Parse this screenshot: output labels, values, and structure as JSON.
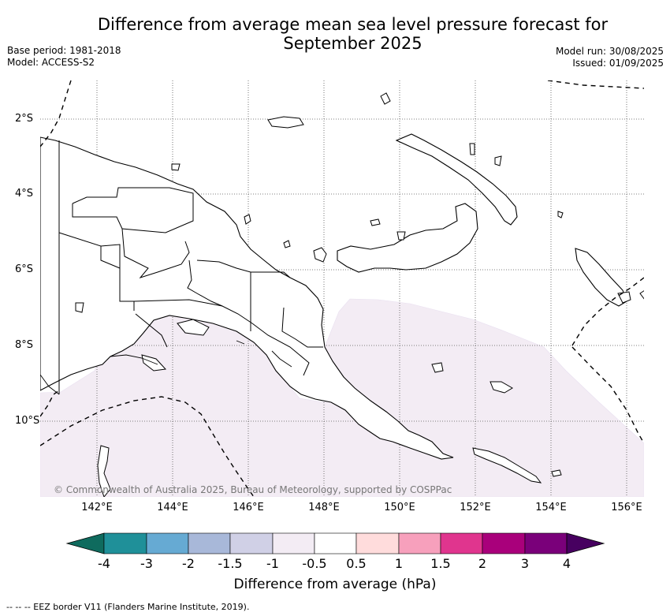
{
  "title_line1": "Difference from average mean sea level pressure forecast for",
  "title_line2": "September 2025",
  "meta_left": {
    "base_period": "Base period: 1981-2018",
    "model": "Model: ACCESS-S2"
  },
  "meta_right": {
    "model_run": "Model run: 30/08/2025",
    "issued": "Issued: 01/09/2025"
  },
  "map": {
    "lon_ticks": [
      "142°E",
      "144°E",
      "146°E",
      "148°E",
      "150°E",
      "152°E",
      "154°E",
      "156°E"
    ],
    "lat_ticks": [
      "2°S",
      "4°S",
      "6°S",
      "8°S",
      "10°S"
    ],
    "copyright": "© Commonwealth of Australia 2025, Bureau of Meteorology, supported by COSPPac",
    "anomaly_fill_color": "#f3ecf4"
  },
  "colorbar": {
    "title": "Difference from average (hPa)",
    "labels": [
      "-4",
      "-3",
      "-2",
      "-1.5",
      "-1",
      "-0.5",
      "0.5",
      "1",
      "1.5",
      "2",
      "3",
      "4"
    ],
    "colors": [
      "#0f6b5e",
      "#1f9099",
      "#66aad3",
      "#a8b8d9",
      "#d0d0e6",
      "#f3ecf4",
      "#ffffff",
      "#ffdcdc",
      "#f7a0bc",
      "#e0358e",
      "#a9007b",
      "#7a007a",
      "#470060"
    ]
  },
  "footnote": "--  --  -- EEZ border V11 (Flanders Marine Institute, 2019)."
}
